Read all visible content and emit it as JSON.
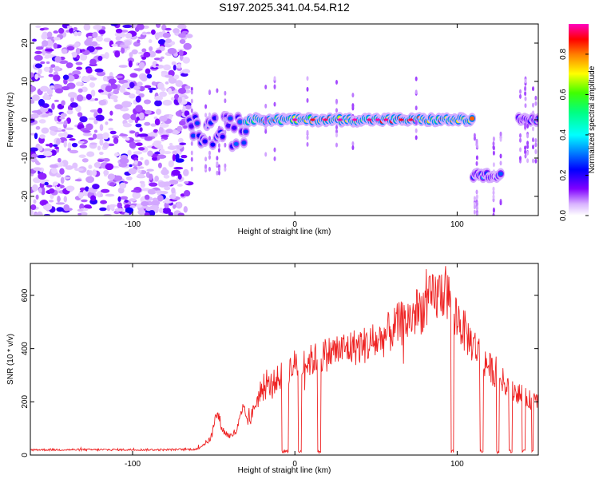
{
  "title": "S197.2025.341.04.54.R12",
  "chart_data": [
    {
      "type": "heatmap",
      "title": "S197.2025.341.04.54.R12",
      "xlabel": "Height of straight line (km)",
      "ylabel": "Frequency (Hz)",
      "xlim": [
        -163,
        150
      ],
      "ylim": [
        -25,
        25
      ],
      "xticks": [
        -100,
        0,
        100
      ],
      "yticks": [
        -20,
        -10,
        0,
        10,
        20
      ],
      "colorbar": {
        "label": "Normalized spectral amplitude",
        "range": [
          0,
          0.95
        ],
        "ticks": [
          0.0,
          0.2,
          0.4,
          0.6,
          0.8
        ],
        "tick_labels": [
          "0.0",
          "0.2",
          "0.4",
          "0.6",
          "0.8"
        ]
      },
      "features": [
        {
          "name": "broadband noise",
          "x_range": [
            -163,
            -65
          ],
          "freq_range": [
            -25,
            25
          ],
          "amplitude": 0.2
        },
        {
          "name": "onset cluster",
          "x_range": [
            -65,
            -30
          ],
          "freq_center": -3,
          "amplitude": 0.3
        },
        {
          "name": "main tone",
          "x_range": [
            -30,
            110
          ],
          "freq_center": 0,
          "amplitude": 0.9
        },
        {
          "name": "offset tone",
          "x_range": [
            110,
            128
          ],
          "freq_center": -14.5,
          "amplitude": 0.35
        },
        {
          "name": "late tone",
          "x_range": [
            138,
            150
          ],
          "freq_center": 0,
          "amplitude": 0.35
        }
      ]
    },
    {
      "type": "line",
      "xlabel": "Height of straight line (km)",
      "ylabel": "SNR (10 * v/v)",
      "xlim": [
        -163,
        150
      ],
      "ylim": [
        0,
        720
      ],
      "xticks": [
        -100,
        0,
        100
      ],
      "yticks": [
        0,
        200,
        400,
        600
      ],
      "series": [
        {
          "name": "SNR",
          "color": "#ee2222",
          "x": [
            -163,
            -140,
            -120,
            -100,
            -80,
            -60,
            -52,
            -48,
            -44,
            -40,
            -36,
            -32,
            -28,
            -24,
            -20,
            -16,
            -12,
            -8,
            -4,
            0,
            4,
            8,
            12,
            16,
            20,
            24,
            28,
            32,
            36,
            40,
            44,
            48,
            52,
            56,
            60,
            64,
            68,
            72,
            76,
            80,
            84,
            88,
            92,
            96,
            100,
            104,
            108,
            112,
            116,
            120,
            124,
            128,
            132,
            136,
            140,
            144,
            148,
            150
          ],
          "values": [
            20,
            20,
            20,
            20,
            20,
            22,
            60,
            160,
            90,
            70,
            90,
            170,
            120,
            200,
            240,
            260,
            280,
            300,
            320,
            340,
            340,
            350,
            360,
            370,
            380,
            390,
            395,
            400,
            405,
            410,
            415,
            420,
            430,
            450,
            470,
            490,
            500,
            520,
            540,
            560,
            580,
            600,
            620,
            580,
            520,
            470,
            430,
            400,
            360,
            330,
            300,
            280,
            260,
            240,
            220,
            210,
            200,
            200
          ]
        }
      ],
      "dropouts": [
        [
          -8,
          -4
        ],
        [
          2,
          4
        ],
        [
          14,
          16
        ],
        [
          96,
          98
        ],
        [
          114,
          116
        ],
        [
          124,
          126
        ],
        [
          132,
          134
        ],
        [
          140,
          142
        ],
        [
          146,
          147
        ]
      ]
    }
  ]
}
